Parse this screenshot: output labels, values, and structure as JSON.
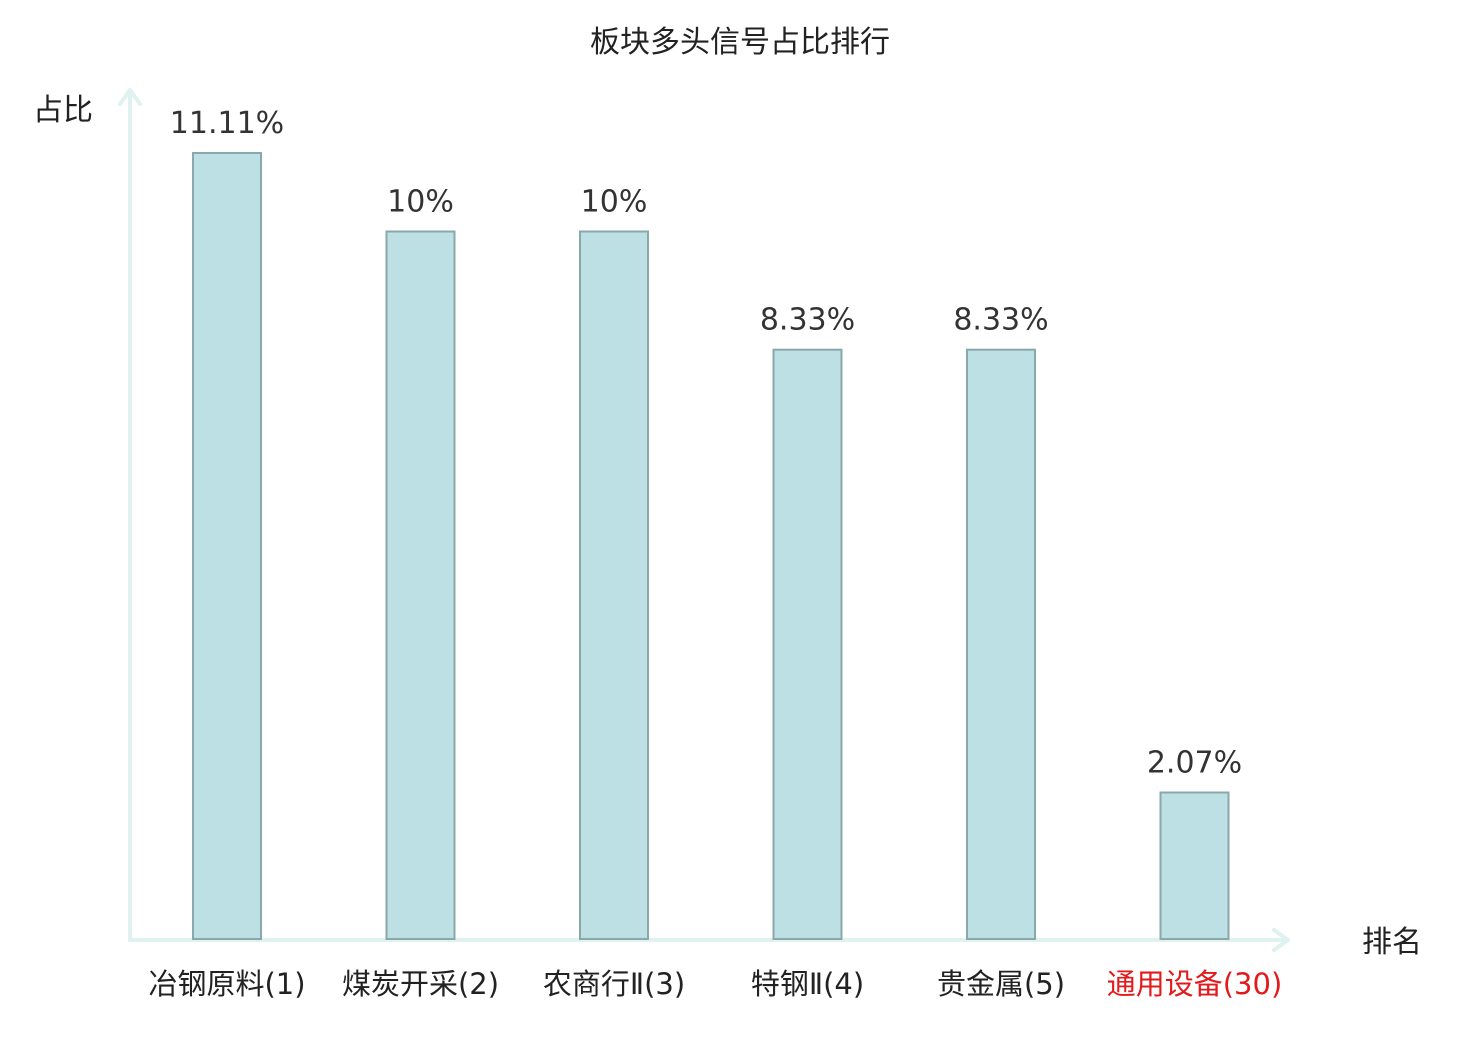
{
  "chart_data": {
    "type": "bar",
    "title": "板块多头信号占比排行",
    "ylabel": "占比",
    "xlabel": "排名",
    "ylim": [
      0,
      12
    ],
    "grid": false,
    "categories": [
      "冶钢原料(1)",
      "煤炭开采(2)",
      "农商行Ⅱ(3)",
      "特钢Ⅱ(4)",
      "贵金属(5)",
      "通用设备(30)"
    ],
    "values": [
      11.11,
      10,
      10,
      8.33,
      8.33,
      2.07
    ],
    "value_labels": [
      "11.11%",
      "10%",
      "10%",
      "8.33%",
      "8.33%",
      "2.07%"
    ],
    "highlight_index": 5
  },
  "colors": {
    "bar_fill": "#bce0e3",
    "bar_stroke": "#8aa8aa",
    "axis": "#dff2f0",
    "text": "#222222",
    "highlight": "#e31a1c"
  }
}
